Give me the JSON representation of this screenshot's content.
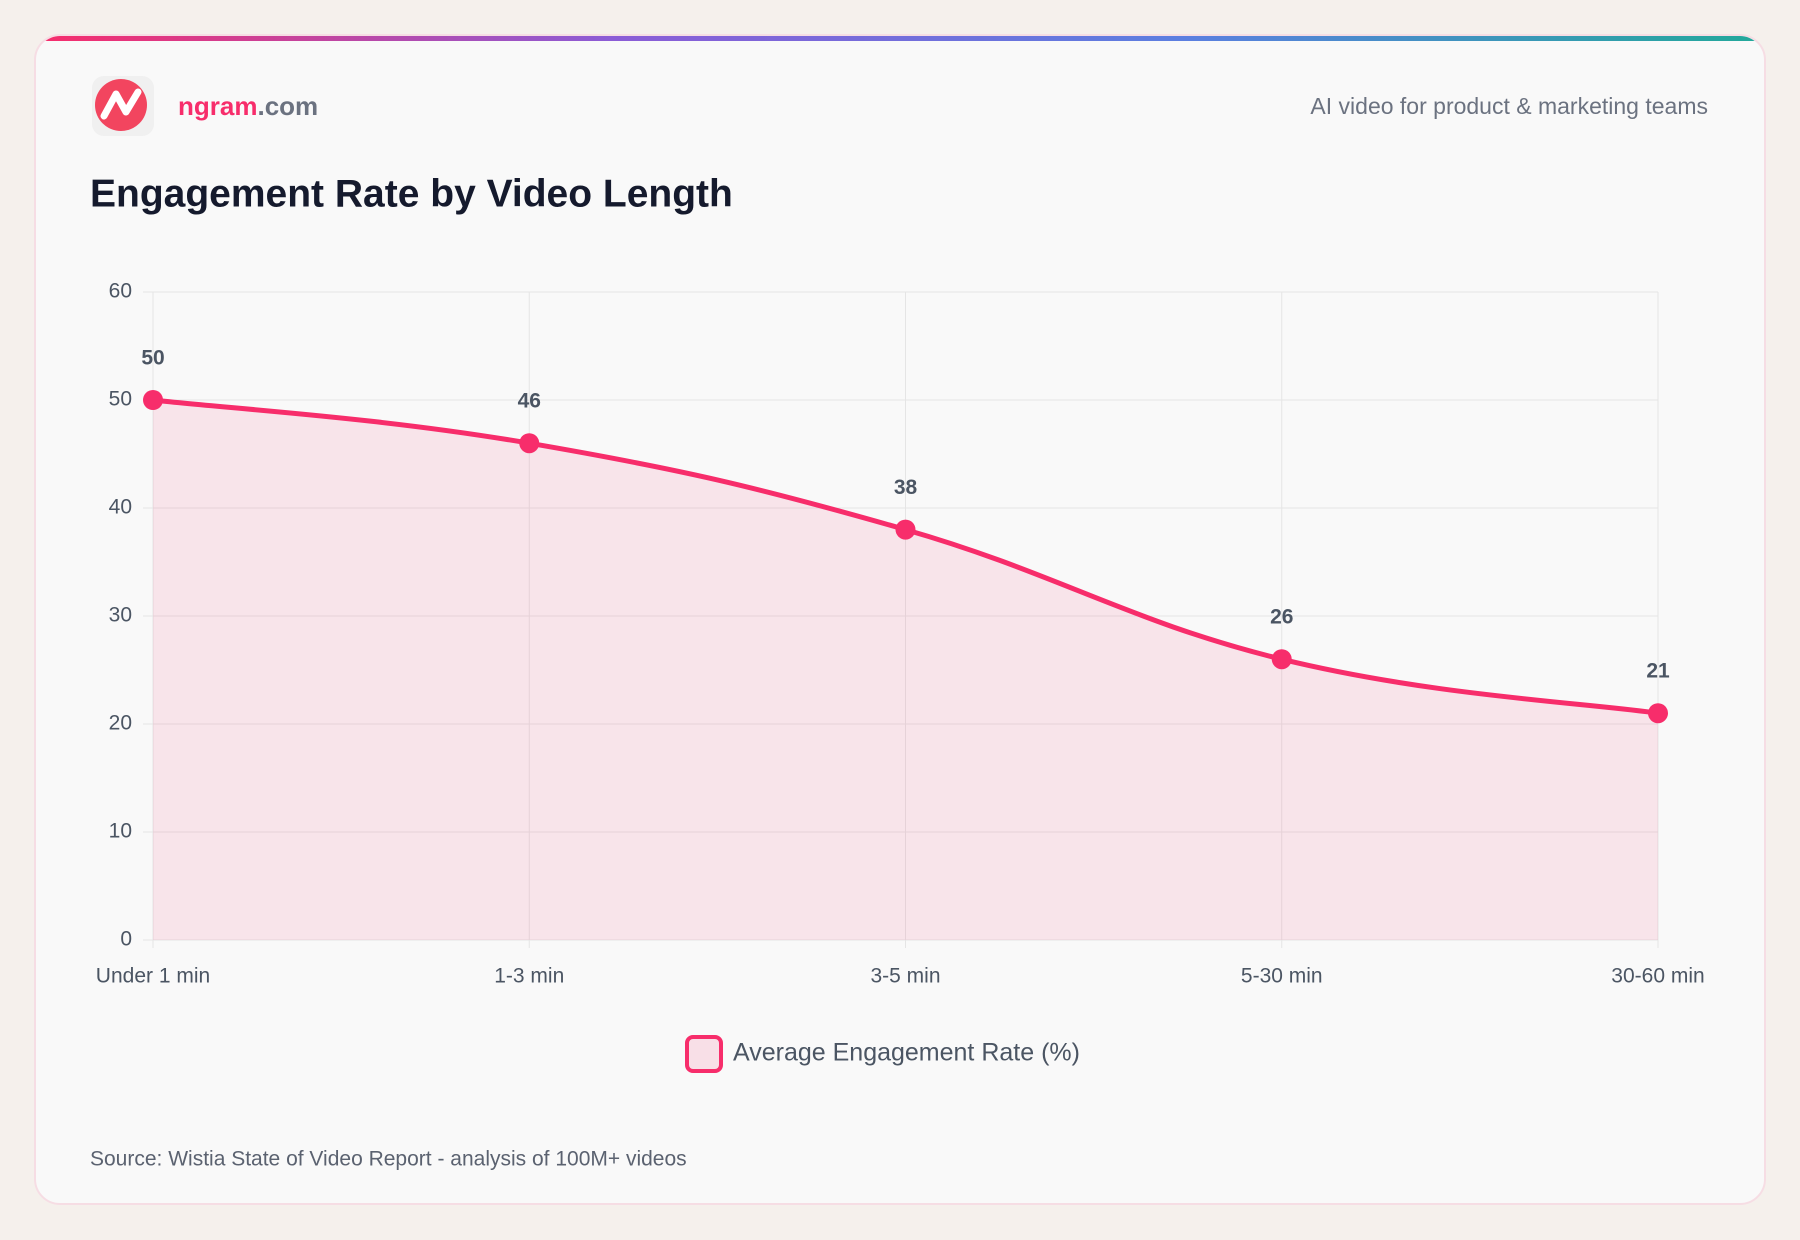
{
  "header": {
    "brand_name": "ngram",
    "brand_domain": ".com",
    "tagline": "AI video for product & marketing teams"
  },
  "chart_data": {
    "type": "line",
    "title": "Engagement Rate by Video Length",
    "categories": [
      "Under 1 min",
      "1-3 min",
      "3-5 min",
      "5-30 min",
      "30-60 min"
    ],
    "series": [
      {
        "name": "Average Engagement Rate (%)",
        "color": "#f72d6b",
        "values": [
          50,
          46,
          38,
          26,
          21
        ]
      }
    ],
    "ylim": [
      0,
      60
    ],
    "yticks": [
      0,
      10,
      20,
      30,
      40,
      50,
      60
    ],
    "grid": true,
    "legend": "bottom"
  },
  "source": "Source: Wistia State of Video Report - analysis of 100M+ videos"
}
